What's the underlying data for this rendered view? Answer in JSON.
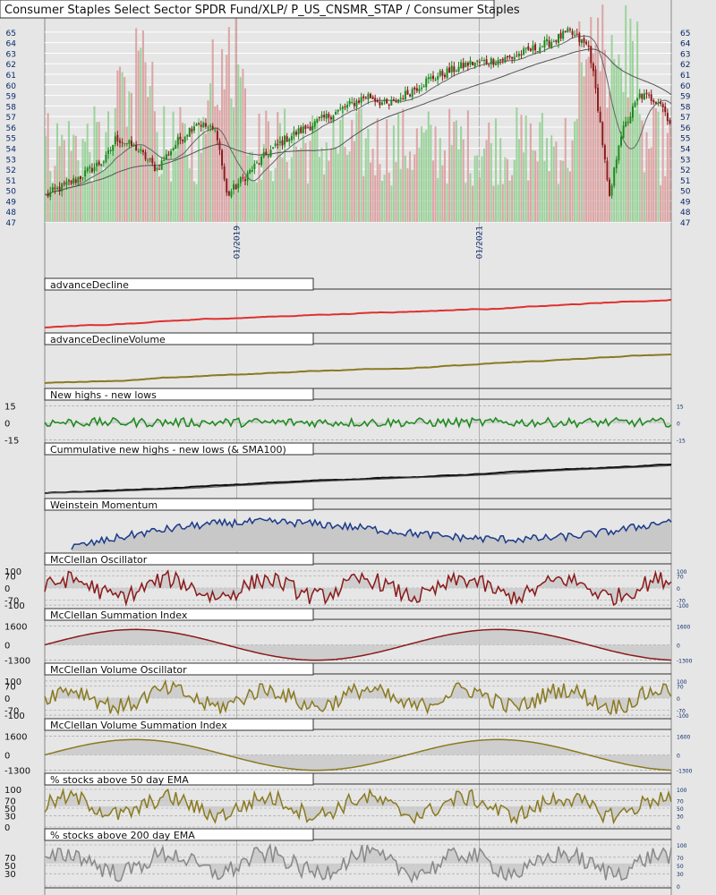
{
  "title": "Consumer Staples Select Sector SPDR Fund/XLP/ P_US_CNSMR_STAP / Consumer Staples",
  "date_labels": [
    "01/2019",
    "01/2021"
  ],
  "colors": {
    "background": "#e6e6e6",
    "grid": "#ffffff",
    "up_candle": "#1a8a1a",
    "down_candle": "#8b1a1a",
    "up_volume": "#8fcf8f",
    "down_volume": "#d99a9a",
    "price_axis": "#0a2a6a",
    "ad_line": "#e03030",
    "olive_line": "#8a7a20",
    "green_line": "#1a8a1a",
    "black_line": "#111111",
    "navy_line": "#1a3a8a",
    "maroon_line": "#8b1a1a",
    "gray_line": "#888888",
    "fill": "#c8c8c8"
  },
  "chart_data": [
    {
      "type": "candlestick",
      "panel": "price",
      "y_ticks": [
        "65",
        "64",
        "63",
        "62",
        "61",
        "60",
        "59",
        "58",
        "57",
        "56",
        "55",
        "54",
        "53",
        "52",
        "51",
        "50",
        "49",
        "48",
        "47"
      ],
      "ylim": [
        47,
        65.5
      ],
      "x_start": "2017-06",
      "x_end": "2022-08",
      "close_waypoints": [
        {
          "date": "2017-06",
          "close": 49.5
        },
        {
          "date": "2017-09",
          "close": 51.0
        },
        {
          "date": "2017-12",
          "close": 53.0
        },
        {
          "date": "2018-01",
          "close": 55.0
        },
        {
          "date": "2018-03",
          "close": 54.0
        },
        {
          "date": "2018-05",
          "close": 52.0
        },
        {
          "date": "2018-07",
          "close": 54.5
        },
        {
          "date": "2018-09",
          "close": 56.5
        },
        {
          "date": "2018-11",
          "close": 55.5
        },
        {
          "date": "2018-12",
          "close": 49.5
        },
        {
          "date": "2019-02",
          "close": 51.5
        },
        {
          "date": "2019-04",
          "close": 53.5
        },
        {
          "date": "2019-06",
          "close": 55.0
        },
        {
          "date": "2019-09",
          "close": 56.5
        },
        {
          "date": "2019-12",
          "close": 58.0
        },
        {
          "date": "2020-02",
          "close": 59.0
        },
        {
          "date": "2020-04",
          "close": 58.0
        },
        {
          "date": "2020-08",
          "close": 60.5
        },
        {
          "date": "2020-12",
          "close": 62.0
        },
        {
          "date": "2021-04",
          "close": 62.5
        },
        {
          "date": "2021-08",
          "close": 64.0
        },
        {
          "date": "2021-10",
          "close": 65.0
        },
        {
          "date": "2021-12",
          "close": 63.5
        },
        {
          "date": "2022-01",
          "close": 57.0
        },
        {
          "date": "2022-02",
          "close": 49.0
        },
        {
          "date": "2022-03",
          "close": 55.0
        },
        {
          "date": "2022-05",
          "close": 59.0
        },
        {
          "date": "2022-07",
          "close": 58.5
        },
        {
          "date": "2022-08",
          "close": 56.5
        }
      ],
      "moving_averages": [
        "short MA",
        "long MA"
      ],
      "volume": "bars behind price, green up / red down"
    },
    {
      "type": "line",
      "panel": "ad",
      "series": [
        {
          "values_shape": "slow rise"
        }
      ],
      "label": "advanceDecline"
    },
    {
      "type": "line",
      "panel": "adv",
      "label": "advanceDeclineVolume"
    },
    {
      "type": "line",
      "panel": "nhnl",
      "label": "New highs - new lows",
      "left_ticks": [
        "15",
        "0",
        "-15"
      ],
      "right_ticks": [
        "15",
        "0",
        "-15"
      ],
      "ylim": [
        -16,
        16
      ]
    },
    {
      "type": "line",
      "panel": "cum",
      "label": "Cummulative new highs - new lows (& SMA100)"
    },
    {
      "type": "area",
      "panel": "wm",
      "label": "Weinstein Momentum"
    },
    {
      "type": "line",
      "panel": "mco",
      "label": "McClellan Oscillator",
      "left_ticks": [
        "100",
        "70",
        "0",
        "-70",
        "-100"
      ],
      "right_ticks": [
        "100",
        "70",
        "0",
        "-70",
        "-100"
      ],
      "ylim": [
        -110,
        110
      ]
    },
    {
      "type": "line",
      "panel": "msi",
      "label": "McClellan Summation Index",
      "left_ticks": [
        "1600",
        "0",
        "-1300"
      ],
      "right_ticks": [
        "1600",
        "0",
        "-1300"
      ],
      "ylim": [
        -1400,
        1700
      ]
    },
    {
      "type": "line",
      "panel": "mvo",
      "label": "McClellan Volume Oscillator",
      "left_ticks": [
        "100",
        "70",
        "0",
        "-70",
        "-100"
      ],
      "right_ticks": [
        "100",
        "70",
        "0",
        "-70",
        "-100"
      ],
      "ylim": [
        -110,
        110
      ]
    },
    {
      "type": "line",
      "panel": "mvsi",
      "label": "McClellan Volume Summation Index",
      "left_ticks": [
        "1600",
        "0",
        "-1300"
      ],
      "right_ticks": [
        "1600",
        "0",
        "-1300"
      ],
      "ylim": [
        -1400,
        1700
      ]
    },
    {
      "type": "line",
      "panel": "p50",
      "label": "% stocks above 50 day EMA",
      "left_ticks": [
        "100",
        "70",
        "50",
        "30",
        "0"
      ],
      "right_ticks": [
        "100",
        "70",
        "50",
        "30",
        "0"
      ],
      "ylim": [
        0,
        100
      ]
    },
    {
      "type": "line",
      "panel": "p200",
      "label": "% stocks above 200 day EMA",
      "left_ticks": [
        "70",
        "50",
        "30"
      ],
      "right_ticks": [
        "100",
        "70",
        "50",
        "30",
        "0"
      ],
      "ylim": [
        0,
        100
      ]
    }
  ]
}
